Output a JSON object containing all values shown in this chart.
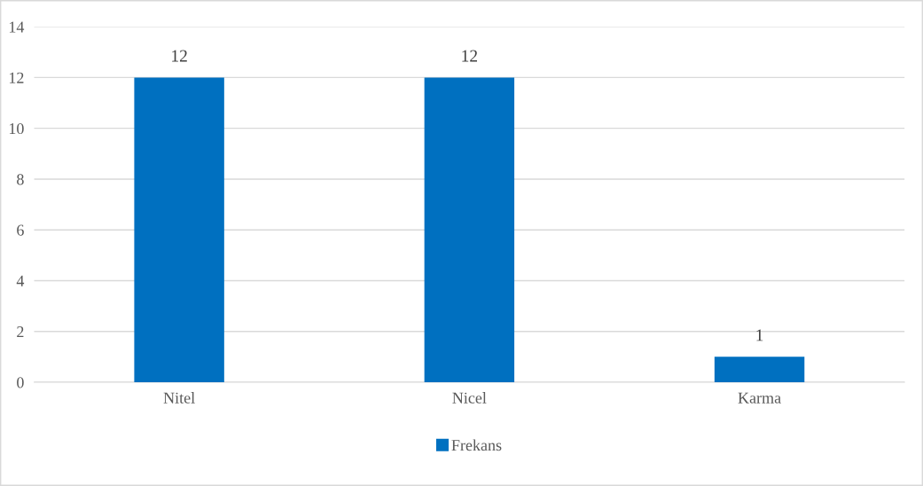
{
  "chart_data": {
    "type": "bar",
    "categories": [
      "Nitel",
      "Nicel",
      "Karma"
    ],
    "series": [
      {
        "name": "Frekans",
        "color": "#0070c0",
        "values": [
          12,
          12,
          1
        ]
      }
    ],
    "ylim": [
      0,
      14
    ],
    "yticks": [
      0,
      2,
      4,
      6,
      8,
      10,
      12,
      14
    ],
    "grid": "y",
    "legend": "bottom",
    "data_labels": true
  }
}
